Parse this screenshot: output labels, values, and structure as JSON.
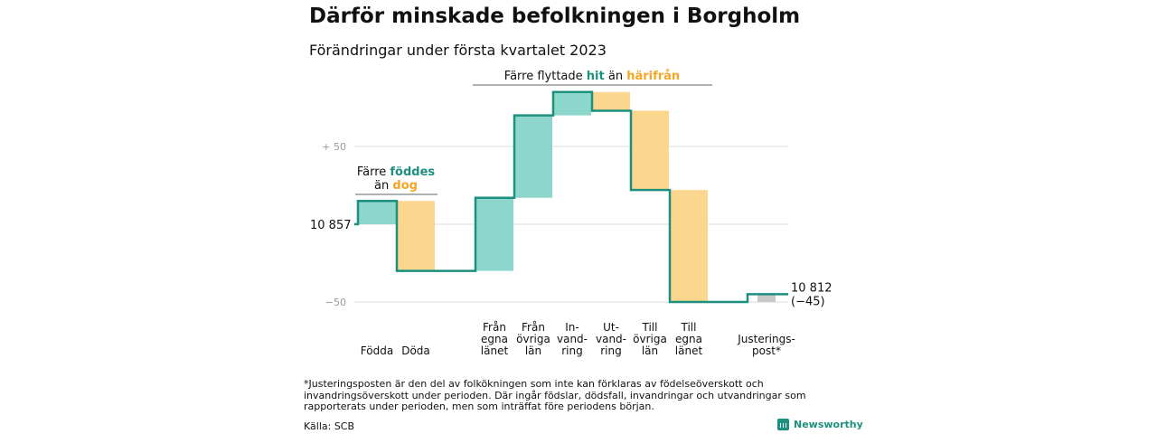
{
  "header": {
    "title": "Därför minskade befolkningen i Borgholm",
    "subtitle": "Förändringar under första kvartalet 2023"
  },
  "colors": {
    "increase": "#8dd6cc",
    "decrease": "#fbd68e",
    "adjustment": "#c8c8c8",
    "line": "#1d8f7e",
    "hit_text": "#1d8f7e",
    "harifran_text": "#f5a623",
    "grid": "#dddddd"
  },
  "chart_data": {
    "type": "bar",
    "subtype": "waterfall",
    "start_value": 10857,
    "start_label": "10 857",
    "end_value": 10812,
    "end_label": "10 812",
    "end_change_label": "(−45)",
    "categories": [
      {
        "label": "Födda",
        "lines": [
          "Födda"
        ],
        "change": 15,
        "kind": "increase"
      },
      {
        "label": "Döda",
        "lines": [
          "Döda"
        ],
        "change": -45,
        "kind": "decrease"
      },
      {
        "label": "Från egna länet",
        "lines": [
          "Från",
          "egna",
          "länet"
        ],
        "change": 47,
        "kind": "increase"
      },
      {
        "label": "Från övriga län",
        "lines": [
          "Från",
          "övriga",
          "län"
        ],
        "change": 53,
        "kind": "increase"
      },
      {
        "label": "In-vand-ring",
        "lines": [
          "In-",
          "vand-",
          "ring"
        ],
        "change": 15,
        "kind": "increase"
      },
      {
        "label": "Ut-vand-ring",
        "lines": [
          "Ut-",
          "vand-",
          "ring"
        ],
        "change": -12,
        "kind": "decrease"
      },
      {
        "label": "Till övriga län",
        "lines": [
          "Till",
          "övriga",
          "län"
        ],
        "change": -51,
        "kind": "decrease"
      },
      {
        "label": "Till egna länet",
        "lines": [
          "Till",
          "egna",
          "länet"
        ],
        "change": -72,
        "kind": "decrease"
      },
      {
        "label": "Justerings-post*",
        "lines": [
          "Justerings-",
          "post*"
        ],
        "change": 5,
        "kind": "adjustment"
      }
    ],
    "y_axis": {
      "range": [
        -60,
        110
      ],
      "ticks": [
        {
          "value": 50,
          "label": "+ 50"
        },
        {
          "value": 0,
          "label": ""
        },
        {
          "value": -50,
          "label": "−50"
        }
      ]
    },
    "annotations": [
      {
        "id": "birth",
        "parts": [
          {
            "text": "Färre ",
            "style": "plain"
          },
          {
            "text": "föddes",
            "style": "increase"
          }
        ],
        "parts2": [
          {
            "text": "än ",
            "style": "plain"
          },
          {
            "text": "dog",
            "style": "decrease"
          }
        ]
      },
      {
        "id": "move",
        "parts": [
          {
            "text": "Färre flyttade ",
            "style": "plain"
          },
          {
            "text": "hit",
            "style": "increase"
          },
          {
            "text": " än ",
            "style": "plain"
          },
          {
            "text": "härifrån",
            "style": "decrease"
          }
        ]
      }
    ]
  },
  "footer": {
    "footnote": "*Justeringsposten är den del av folkökningen som inte kan förklaras av födelseöverskott och invandringsöverskott under perioden. Där ingår födslar, dödsfall, invandringar och utvandringar som rapporterats under perioden, men som inträffat före periodens början.",
    "source": "Källa: SCB",
    "brand": "Newsworthy"
  }
}
